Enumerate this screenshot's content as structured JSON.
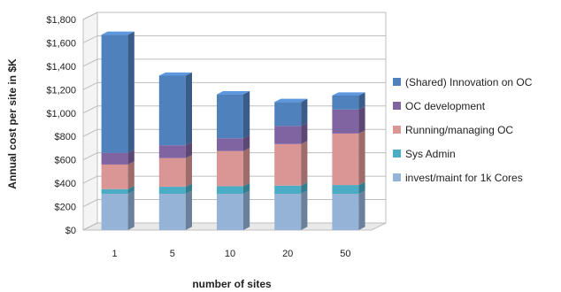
{
  "chart_data": {
    "type": "bar",
    "stacked": true,
    "three_d": true,
    "categories": [
      "1",
      "5",
      "10",
      "20",
      "50"
    ],
    "xlabel": "number of sites",
    "ylabel": "Annual cost per site in $K",
    "ylim": [
      0,
      1800
    ],
    "y_ticks": [
      "$0",
      "$200",
      "$400",
      "$600",
      "$800",
      "$1,000",
      "$1,200",
      "$1,400",
      "$1,600",
      "$1,800"
    ],
    "grid": true,
    "legend_position": "right",
    "series": [
      {
        "name": "invest/maint for 1k Cores",
        "color": "#95B3D7",
        "values": [
          310,
          310,
          310,
          310,
          310
        ]
      },
      {
        "name": "Sys Admin",
        "color": "#4BACC6",
        "values": [
          40,
          60,
          65,
          70,
          75
        ]
      },
      {
        "name": "Running/managing  OC",
        "color": "#DA9694",
        "values": [
          210,
          245,
          300,
          355,
          440
        ]
      },
      {
        "name": "OC development",
        "color": "#8064A2",
        "values": [
          100,
          110,
          110,
          155,
          205
        ]
      },
      {
        "name": "(Shared) Innovation on OC",
        "color": "#4F81BD",
        "values": [
          1010,
          595,
          375,
          205,
          120
        ]
      }
    ]
  }
}
